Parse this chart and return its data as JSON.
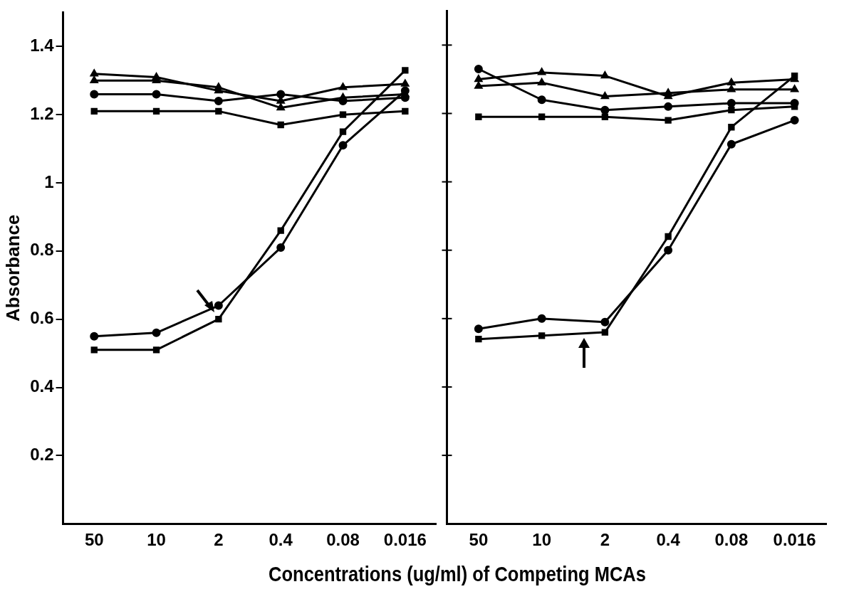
{
  "chart_data": [
    {
      "type": "line",
      "ylabel": "Absorbance",
      "xlabel": "Concentrations (ug/ml) of Competing MCAs",
      "categories": [
        "50",
        "10",
        "2",
        "0.4",
        "0.08",
        "0.016"
      ],
      "ylim": [
        0,
        1.5
      ],
      "yticks": [
        0.2,
        0.4,
        0.6,
        0.8,
        1.0,
        1.2,
        1.4
      ],
      "grid": false,
      "legend": false,
      "line_style": "solid",
      "series": [
        {
          "color": "#000000",
          "marker": "triangle",
          "values": [
            1.32,
            1.31,
            1.27,
            1.24,
            1.28,
            1.29
          ]
        },
        {
          "color": "#000000",
          "marker": "triangle",
          "values": [
            1.3,
            1.3,
            1.28,
            1.22,
            1.25,
            1.26
          ]
        },
        {
          "color": "#000000",
          "marker": "circle",
          "values": [
            1.26,
            1.26,
            1.24,
            1.26,
            1.24,
            1.25
          ]
        },
        {
          "color": "#000000",
          "marker": "square",
          "values": [
            1.21,
            1.21,
            1.21,
            1.17,
            1.2,
            1.21
          ]
        },
        {
          "color": "#000000",
          "marker": "square",
          "values": [
            0.51,
            0.51,
            0.6,
            0.86,
            1.15,
            1.33
          ]
        },
        {
          "color": "#000000",
          "marker": "circle",
          "values": [
            0.55,
            0.56,
            0.64,
            0.81,
            1.11,
            1.27
          ]
        }
      ]
    },
    {
      "type": "line",
      "categories": [
        "50",
        "10",
        "2",
        "0.4",
        "0.08",
        "0.016"
      ],
      "ylim": [
        0,
        1.5
      ],
      "yticks": [
        0.2,
        0.4,
        0.6,
        0.8,
        1.0,
        1.2,
        1.4
      ],
      "tick_labels": "x",
      "grid": false,
      "legend": false,
      "line_style": "solid",
      "series": [
        {
          "color": "#000000",
          "marker": "circle",
          "values": [
            1.33,
            1.24,
            1.21,
            1.22,
            1.23,
            1.23
          ]
        },
        {
          "color": "#000000",
          "marker": "triangle",
          "values": [
            1.3,
            1.32,
            1.31,
            1.25,
            1.29,
            1.3
          ]
        },
        {
          "color": "#000000",
          "marker": "triangle",
          "values": [
            1.28,
            1.29,
            1.25,
            1.26,
            1.27,
            1.27
          ]
        },
        {
          "color": "#000000",
          "marker": "square",
          "values": [
            1.19,
            1.19,
            1.19,
            1.18,
            1.21,
            1.22
          ]
        },
        {
          "color": "#000000",
          "marker": "circle",
          "values": [
            0.57,
            0.6,
            0.59,
            0.8,
            1.11,
            1.18
          ]
        },
        {
          "color": "#000000",
          "marker": "square",
          "values": [
            0.54,
            0.55,
            0.56,
            0.84,
            1.16,
            1.31
          ]
        }
      ]
    }
  ]
}
